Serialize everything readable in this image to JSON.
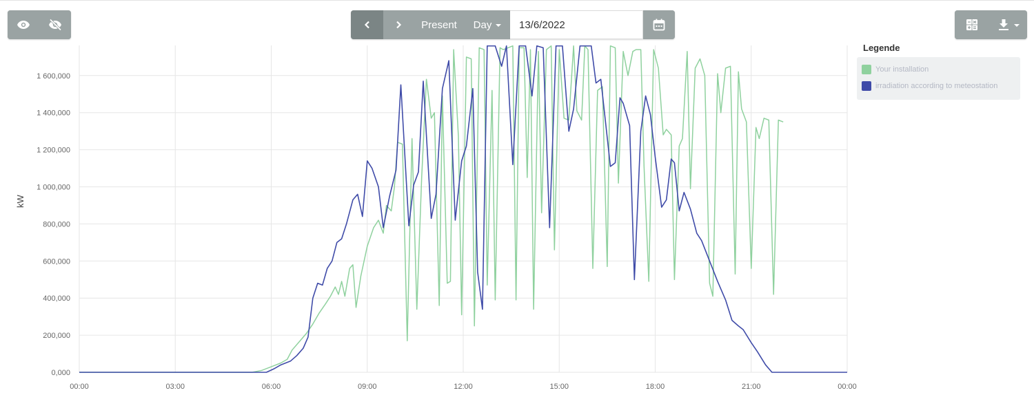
{
  "toolbar": {
    "visibility": {
      "show_icon": "eye-icon",
      "hide_icon": "eye-slash-icon"
    },
    "navigation": {
      "prev_icon": "chevron-left-icon",
      "next_icon": "chevron-right-icon",
      "present_label": "Present",
      "period_label": "Day",
      "date_value": "13/6/2022",
      "calendar_icon": "calendar-icon"
    },
    "tools": {
      "calculator_icon": "calculator-icon",
      "download_icon": "download-icon"
    }
  },
  "legend": {
    "title": "Legende",
    "items": [
      {
        "label": "Your installation",
        "color": "#8fd19e"
      },
      {
        "label": "irradiation according to meteostation",
        "color": "#3f4ba8"
      }
    ]
  },
  "colors": {
    "button_bg": "#9aa3a3",
    "button_active": "#7b8585",
    "grid": "#e6e6e6",
    "series_installation": "#8fd19e",
    "series_irradiation": "#3f4ba8"
  },
  "chart_data": {
    "type": "line",
    "title": "",
    "xlabel": "",
    "ylabel": "kW",
    "x_ticks": [
      "00:00",
      "03:00",
      "06:00",
      "09:00",
      "12:00",
      "15:00",
      "18:00",
      "21:00",
      "00:00"
    ],
    "y_ticks": [
      "0,000",
      "200,000",
      "400,000",
      "600,000",
      "800,000",
      "1 000,000",
      "1 200,000",
      "1 400,000",
      "1 600,000"
    ],
    "xlim_hours": [
      0,
      24
    ],
    "ylim": [
      0,
      1760000
    ],
    "grid": true,
    "legend_position": "right",
    "series": [
      {
        "name": "Your installation",
        "color": "#8fd19e",
        "points": [
          [
            0,
            0
          ],
          [
            5.4,
            0
          ],
          [
            5.7,
            10000
          ],
          [
            6.0,
            30000
          ],
          [
            6.3,
            50000
          ],
          [
            6.5,
            70000
          ],
          [
            6.65,
            120000
          ],
          [
            6.9,
            170000
          ],
          [
            7.1,
            210000
          ],
          [
            7.3,
            260000
          ],
          [
            7.5,
            320000
          ],
          [
            7.7,
            370000
          ],
          [
            7.85,
            410000
          ],
          [
            8.0,
            460000
          ],
          [
            8.1,
            420000
          ],
          [
            8.2,
            490000
          ],
          [
            8.3,
            410000
          ],
          [
            8.45,
            560000
          ],
          [
            8.55,
            580000
          ],
          [
            8.65,
            350000
          ],
          [
            8.8,
            520000
          ],
          [
            9.0,
            680000
          ],
          [
            9.2,
            780000
          ],
          [
            9.35,
            820000
          ],
          [
            9.5,
            750000
          ],
          [
            9.6,
            900000
          ],
          [
            9.75,
            870000
          ],
          [
            9.85,
            1000000
          ],
          [
            9.95,
            1240000
          ],
          [
            10.1,
            1230000
          ],
          [
            10.25,
            170000
          ],
          [
            10.4,
            1260000
          ],
          [
            10.55,
            340000
          ],
          [
            10.7,
            1050000
          ],
          [
            10.85,
            1580000
          ],
          [
            11.0,
            1370000
          ],
          [
            11.1,
            1400000
          ],
          [
            11.25,
            360000
          ],
          [
            11.35,
            1490000
          ],
          [
            11.5,
            480000
          ],
          [
            11.6,
            490000
          ],
          [
            11.7,
            1740000
          ],
          [
            11.85,
            1270000
          ],
          [
            11.95,
            310000
          ],
          [
            12.1,
            1700000
          ],
          [
            12.25,
            1690000
          ],
          [
            12.35,
            250000
          ],
          [
            12.5,
            1750000
          ],
          [
            12.65,
            1740000
          ],
          [
            12.75,
            470000
          ],
          [
            12.9,
            1520000
          ],
          [
            13.0,
            390000
          ],
          [
            13.15,
            1750000
          ],
          [
            13.25,
            1740000
          ],
          [
            13.4,
            1750000
          ],
          [
            13.55,
            1760000
          ],
          [
            13.65,
            390000
          ],
          [
            13.75,
            1750000
          ],
          [
            13.9,
            1750000
          ],
          [
            14.0,
            1050000
          ],
          [
            14.1,
            1740000
          ],
          [
            14.2,
            340000
          ],
          [
            14.35,
            1730000
          ],
          [
            14.45,
            860000
          ],
          [
            14.6,
            1740000
          ],
          [
            14.75,
            1760000
          ],
          [
            14.85,
            660000
          ],
          [
            15.0,
            1740000
          ],
          [
            15.15,
            1370000
          ],
          [
            15.3,
            1360000
          ],
          [
            15.45,
            1760000
          ],
          [
            15.55,
            1410000
          ],
          [
            15.7,
            1360000
          ],
          [
            15.8,
            1760000
          ],
          [
            15.9,
            1740000
          ],
          [
            16.05,
            560000
          ],
          [
            16.2,
            1520000
          ],
          [
            16.35,
            1540000
          ],
          [
            16.5,
            570000
          ],
          [
            16.6,
            1760000
          ],
          [
            16.75,
            1750000
          ],
          [
            16.85,
            1020000
          ],
          [
            17.0,
            1730000
          ],
          [
            17.15,
            1600000
          ],
          [
            17.3,
            1730000
          ],
          [
            17.4,
            1740000
          ],
          [
            17.55,
            1740000
          ],
          [
            17.65,
            1110000
          ],
          [
            17.8,
            490000
          ],
          [
            17.95,
            1740000
          ],
          [
            18.1,
            1640000
          ],
          [
            18.25,
            1280000
          ],
          [
            18.35,
            1310000
          ],
          [
            18.5,
            1280000
          ],
          [
            18.6,
            500000
          ],
          [
            18.75,
            1220000
          ],
          [
            18.85,
            1260000
          ],
          [
            19.0,
            1730000
          ],
          [
            19.1,
            990000
          ],
          [
            19.25,
            1640000
          ],
          [
            19.4,
            1690000
          ],
          [
            19.55,
            1600000
          ],
          [
            19.7,
            480000
          ],
          [
            19.8,
            410000
          ],
          [
            19.95,
            1610000
          ],
          [
            20.05,
            1400000
          ],
          [
            20.2,
            1640000
          ],
          [
            20.35,
            1650000
          ],
          [
            20.5,
            530000
          ],
          [
            20.6,
            1620000
          ],
          [
            20.7,
            1420000
          ],
          [
            20.85,
            1350000
          ],
          [
            21.0,
            560000
          ],
          [
            21.15,
            1320000
          ],
          [
            21.25,
            1260000
          ],
          [
            21.4,
            1370000
          ],
          [
            21.55,
            1360000
          ],
          [
            21.7,
            420000
          ],
          [
            21.85,
            1360000
          ],
          [
            22.0,
            1350000
          ]
        ]
      },
      {
        "name": "irradiation according to meteostation",
        "color": "#3f4ba8",
        "points": [
          [
            0,
            0
          ],
          [
            5.85,
            0
          ],
          [
            6.1,
            20000
          ],
          [
            6.3,
            40000
          ],
          [
            6.6,
            60000
          ],
          [
            6.8,
            90000
          ],
          [
            7.0,
            130000
          ],
          [
            7.15,
            190000
          ],
          [
            7.3,
            400000
          ],
          [
            7.45,
            480000
          ],
          [
            7.6,
            470000
          ],
          [
            7.75,
            560000
          ],
          [
            7.9,
            600000
          ],
          [
            8.05,
            700000
          ],
          [
            8.2,
            720000
          ],
          [
            8.35,
            800000
          ],
          [
            8.55,
            930000
          ],
          [
            8.7,
            960000
          ],
          [
            8.85,
            840000
          ],
          [
            9.0,
            1140000
          ],
          [
            9.15,
            1100000
          ],
          [
            9.35,
            1000000
          ],
          [
            9.5,
            780000
          ],
          [
            9.7,
            950000
          ],
          [
            9.9,
            1090000
          ],
          [
            10.05,
            1550000
          ],
          [
            10.3,
            790000
          ],
          [
            10.45,
            1010000
          ],
          [
            10.6,
            1080000
          ],
          [
            10.75,
            1570000
          ],
          [
            11.0,
            830000
          ],
          [
            11.15,
            960000
          ],
          [
            11.35,
            1530000
          ],
          [
            11.55,
            1680000
          ],
          [
            11.75,
            820000
          ],
          [
            11.95,
            1140000
          ],
          [
            12.1,
            1220000
          ],
          [
            12.3,
            1530000
          ],
          [
            12.45,
            540000
          ],
          [
            12.6,
            340000
          ],
          [
            12.75,
            1760000
          ],
          [
            13.0,
            1760000
          ],
          [
            13.2,
            1650000
          ],
          [
            13.35,
            1760000
          ],
          [
            13.55,
            1120000
          ],
          [
            13.75,
            1760000
          ],
          [
            13.95,
            1760000
          ],
          [
            14.15,
            1490000
          ],
          [
            14.3,
            1760000
          ],
          [
            14.5,
            1750000
          ],
          [
            14.7,
            780000
          ],
          [
            14.9,
            1760000
          ],
          [
            15.1,
            1760000
          ],
          [
            15.3,
            1300000
          ],
          [
            15.45,
            1420000
          ],
          [
            15.65,
            1760000
          ],
          [
            16.0,
            1760000
          ],
          [
            16.15,
            1560000
          ],
          [
            16.3,
            1580000
          ],
          [
            16.6,
            1110000
          ],
          [
            16.75,
            1130000
          ],
          [
            16.9,
            1480000
          ],
          [
            17.0,
            1450000
          ],
          [
            17.2,
            1330000
          ],
          [
            17.35,
            500000
          ],
          [
            17.55,
            1300000
          ],
          [
            17.7,
            1490000
          ],
          [
            17.85,
            1390000
          ],
          [
            18.0,
            1160000
          ],
          [
            18.2,
            890000
          ],
          [
            18.35,
            930000
          ],
          [
            18.5,
            1150000
          ],
          [
            18.6,
            1130000
          ],
          [
            18.75,
            870000
          ],
          [
            18.9,
            970000
          ],
          [
            19.1,
            880000
          ],
          [
            19.3,
            750000
          ],
          [
            19.45,
            710000
          ],
          [
            19.7,
            600000
          ],
          [
            19.95,
            490000
          ],
          [
            20.2,
            390000
          ],
          [
            20.4,
            280000
          ],
          [
            20.6,
            250000
          ],
          [
            20.75,
            230000
          ],
          [
            21.0,
            160000
          ],
          [
            21.2,
            110000
          ],
          [
            21.45,
            40000
          ],
          [
            21.65,
            0
          ],
          [
            24,
            0
          ]
        ]
      }
    ]
  }
}
